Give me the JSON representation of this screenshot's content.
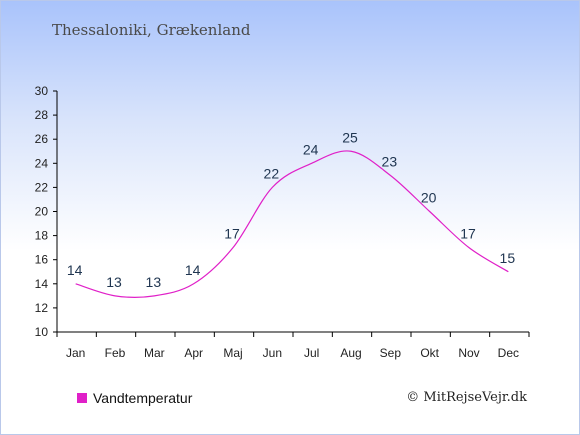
{
  "title": "Thessaloniki, Grækenland",
  "credit": "© MitRejseVejr.dk",
  "chart_data": {
    "type": "line",
    "categories": [
      "Jan",
      "Feb",
      "Mar",
      "Apr",
      "Maj",
      "Jun",
      "Jul",
      "Aug",
      "Sep",
      "Okt",
      "Nov",
      "Dec"
    ],
    "series": [
      {
        "name": "Vandtemperatur",
        "color": "#e020c8",
        "values": [
          14,
          13,
          13,
          14,
          17,
          22,
          24,
          25,
          23,
          20,
          17,
          15
        ]
      }
    ],
    "ylim": [
      10,
      30
    ],
    "yticks": [
      10,
      12,
      14,
      16,
      18,
      20,
      22,
      24,
      26,
      28,
      30
    ],
    "grid": false,
    "legend_position": "bottom-left"
  }
}
